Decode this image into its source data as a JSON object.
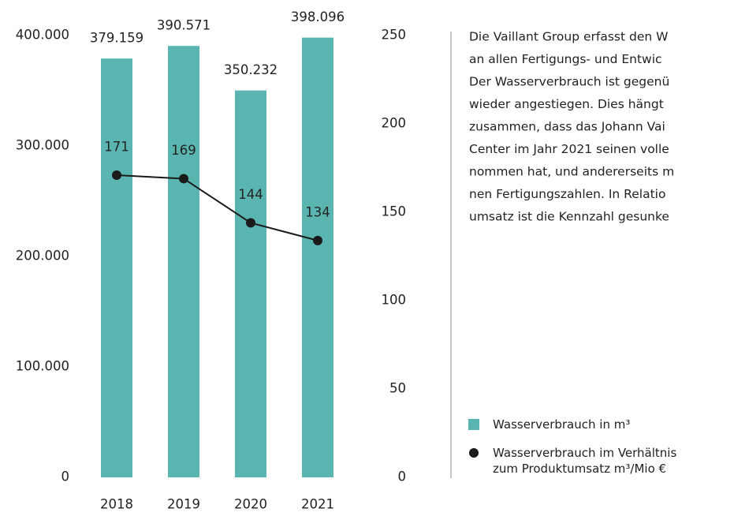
{
  "chart_data": {
    "type": "bar",
    "categories": [
      "2018",
      "2019",
      "2020",
      "2021"
    ],
    "series": [
      {
        "name": "Wasserverbrauch in m³",
        "type": "bar",
        "color": "#5ab5b0",
        "values": [
          379159,
          390571,
          350232,
          398096
        ],
        "value_labels": [
          "379.159",
          "390.571",
          "350.232",
          "398.096"
        ]
      },
      {
        "name": "Wasserverbrauch im Verhältnis\nzum Produktumsatz m³/Mio €",
        "type": "line",
        "axis": "y2",
        "color": "#1a1a1a",
        "values": [
          171,
          169,
          144,
          134
        ]
      }
    ],
    "ylim": [
      0,
      400000
    ],
    "yticks": [
      {
        "value": 0,
        "label": "0"
      },
      {
        "value": 100000,
        "label": "100.000"
      },
      {
        "value": 200000,
        "label": "200.000"
      },
      {
        "value": 300000,
        "label": "300.000"
      },
      {
        "value": 400000,
        "label": "400.000"
      }
    ],
    "y2lim": [
      0,
      250
    ],
    "y2ticks": [
      0,
      50,
      100,
      150,
      200,
      250
    ],
    "text": [
      "Die Vaillant Group erfasst den W",
      "an allen Fertigungs- und Entwic",
      "Der Wasserverbrauch ist gegenü",
      "wieder angestiegen. Dies hängt",
      "zusammen, dass das Johann Vai",
      "Center im Jahr 2021 seinen volle",
      "nommen hat, und andererseits m",
      "nen Fertigungszahlen. In Relatio",
      "umsatz ist die Kennzahl gesunke"
    ]
  }
}
